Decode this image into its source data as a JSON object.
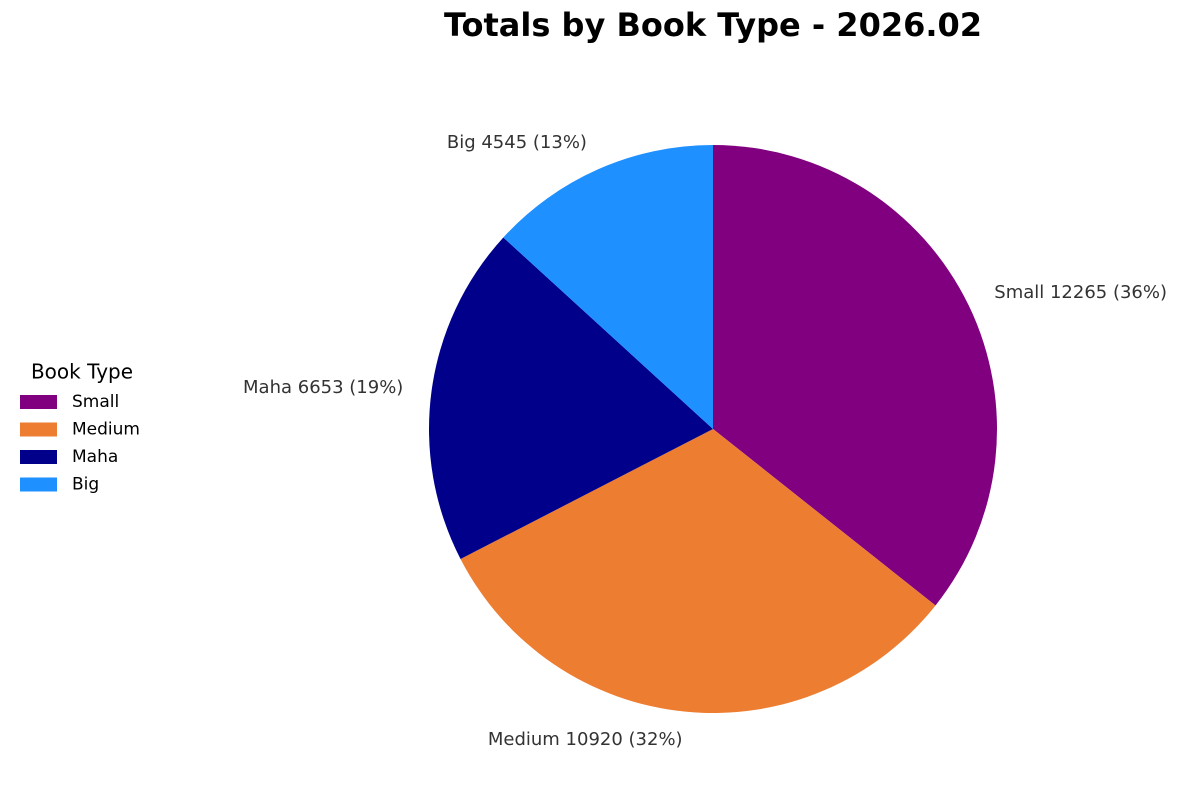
{
  "chart_data": {
    "type": "pie",
    "title": "Totals by Book Type - 2026.02",
    "categories": [
      "Small",
      "Medium",
      "Maha",
      "Big"
    ],
    "values": [
      12265,
      10920,
      6653,
      4545
    ],
    "value_labels": [
      "Small 12265 (36%)",
      "Medium 10920 (32%)",
      "Maha 6653 (19%)",
      "Big 4545 (13%)"
    ],
    "colors": [
      "#800080",
      "#ed7d31",
      "#00008b",
      "#1e90ff"
    ],
    "legend_title": "Book Type",
    "legend": "left"
  }
}
